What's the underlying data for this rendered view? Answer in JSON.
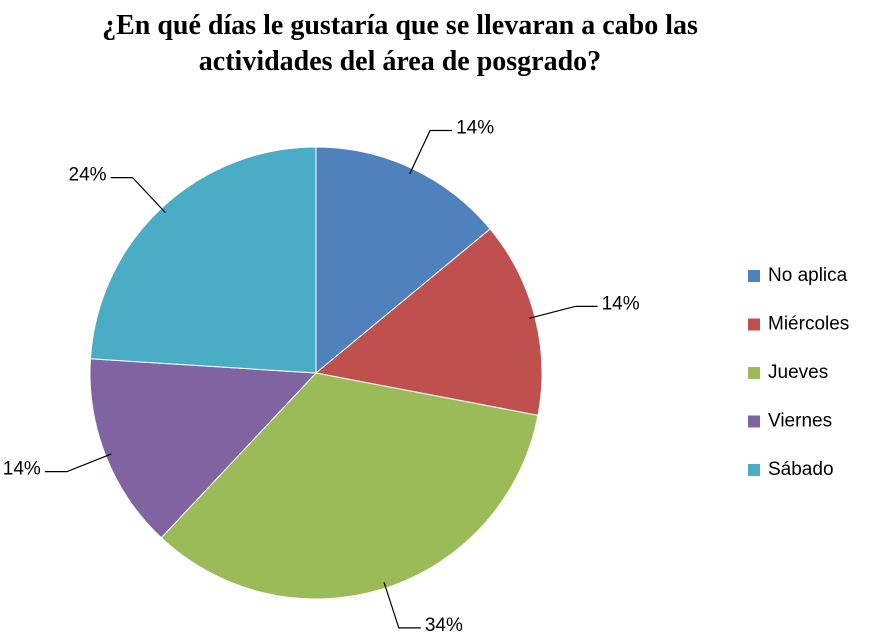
{
  "chart_data": {
    "type": "pie",
    "title": "¿En qué días le gustaría que se llevaran a cabo las actividades del área de posgrado?",
    "categories": [
      "No aplica",
      "Miércoles",
      "Jueves",
      "Viernes",
      "Sábado"
    ],
    "values": [
      14,
      14,
      34,
      14,
      24
    ],
    "value_labels": [
      "14%",
      "14%",
      "34%",
      "14%",
      "24%"
    ],
    "colors": [
      "#4f81bd",
      "#c0504d",
      "#9bbb59",
      "#8064a2",
      "#4bacc6"
    ],
    "legend": "right"
  }
}
